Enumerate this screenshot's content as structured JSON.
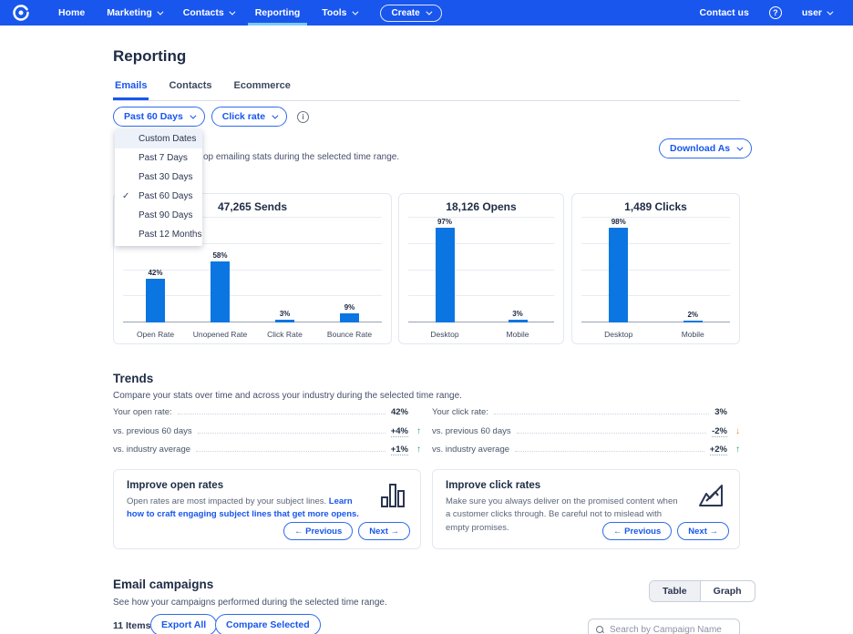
{
  "navbar": {
    "items": [
      {
        "label": "Home"
      },
      {
        "label": "Marketing"
      },
      {
        "label": "Contacts"
      },
      {
        "label": "Reporting"
      },
      {
        "label": "Tools"
      }
    ],
    "create_label": "Create",
    "contact_us": "Contact us",
    "user_label": "user"
  },
  "icons": {
    "help_glyph": "?",
    "info_glyph": "i",
    "check_glyph": "✓"
  },
  "page": {
    "title": "Reporting",
    "tabs": [
      {
        "label": "Emails"
      },
      {
        "label": "Contacts"
      },
      {
        "label": "Ecommerce"
      }
    ],
    "filters": {
      "date_range": "Past 60 Days",
      "metric": "Click rate"
    },
    "subtitle_visible_fragment": "op emailing stats during the selected time range.",
    "download_button": "Download As"
  },
  "date_dropdown": {
    "options": [
      "Custom Dates",
      "Past 7 Days",
      "Past 30 Days",
      "Past 60 Days",
      "Past 90 Days",
      "Past 12 Months"
    ],
    "selected": "Past 60 Days"
  },
  "chart_data": [
    {
      "type": "bar",
      "title": "47,265 Sends",
      "categories": [
        "Open Rate",
        "Unopened Rate",
        "Click Rate",
        "Bounce Rate"
      ],
      "values": [
        42,
        58,
        3,
        9
      ],
      "unit": "%",
      "ylim": [
        0,
        100
      ],
      "grid": true
    },
    {
      "type": "bar",
      "title": "18,126 Opens",
      "categories": [
        "Desktop",
        "Mobile"
      ],
      "values": [
        97,
        3
      ],
      "unit": "%",
      "ylim": [
        0,
        100
      ],
      "grid": true
    },
    {
      "type": "bar",
      "title": "1,489 Clicks",
      "categories": [
        "Desktop",
        "Mobile"
      ],
      "values": [
        98,
        2
      ],
      "unit": "%",
      "ylim": [
        0,
        100
      ],
      "grid": true
    }
  ],
  "trends": {
    "title": "Trends",
    "subtitle": "Compare your stats over time and across your industry during the selected time range.",
    "left": {
      "rows": [
        {
          "label": "Your open rate:",
          "value": "42%",
          "arrow": ""
        },
        {
          "label": "vs. previous 60 days",
          "value": "+4%",
          "arrow": "↑"
        },
        {
          "label": "vs. industry average",
          "value": "+1%",
          "arrow": "↑"
        }
      ]
    },
    "right": {
      "rows": [
        {
          "label": "Your click rate:",
          "value": "3%",
          "arrow": ""
        },
        {
          "label": "vs. previous 60 days",
          "value": "-2%",
          "arrow": "↓"
        },
        {
          "label": "vs. industry average",
          "value": "+2%",
          "arrow": "↑"
        }
      ]
    }
  },
  "tips": [
    {
      "title": "Improve open rates",
      "body": "Open rates are most impacted by your subject lines. ",
      "link": "Learn how to craft engaging subject lines that get more opens.",
      "prev_label": "← Previous",
      "next_label": "Next →"
    },
    {
      "title": "Improve click rates",
      "body": "Make sure you always deliver on the promised content when a customer clicks through. Be careful not to mislead with empty promises.",
      "link": "",
      "prev_label": "← Previous",
      "next_label": "Next →"
    }
  ],
  "campaigns": {
    "title": "Email campaigns",
    "subtitle": "See how your campaigns performed during the selected time range.",
    "toggle": {
      "table_label": "Table",
      "graph_label": "Graph",
      "selected": "Table"
    },
    "items_count": "11 Items",
    "export_all": "Export All",
    "compare_selected": "Compare Selected",
    "search_placeholder": "Search by Campaign Name"
  },
  "colors": {
    "brand_blue": "#1856ED",
    "bar_blue": "#0B76E1",
    "nav_active_underline": "#7AC9F5",
    "trend_up_green": "#1FA463",
    "trend_down_orange": "#E2833A"
  }
}
